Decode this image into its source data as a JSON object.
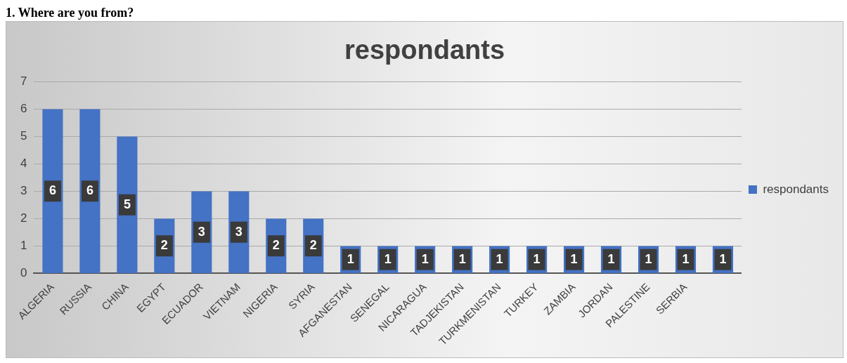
{
  "chart_data": {
    "type": "bar",
    "title": "respondants",
    "annotations": [
      "1. Where are you from?"
    ],
    "categories": [
      "ALGERIA",
      "RUSSIA",
      "CHINA",
      "EGYPT",
      "ECUADOR",
      "VIETNAM",
      "NIGERIA",
      "SYRIA",
      "AFGANESTAN",
      "SENEGAL",
      "NICARAGUA",
      "TADJEKISTAN",
      "TURKMENISTAN",
      "TURKEY",
      "ZAMBIA",
      "JORDAN",
      "PALESTINE",
      "SERBIA",
      null
    ],
    "series": [
      {
        "name": "respondants",
        "color": "#4472c4",
        "values": [
          6,
          6,
          5,
          2,
          3,
          3,
          2,
          2,
          1,
          1,
          1,
          1,
          1,
          1,
          1,
          1,
          1,
          1,
          1
        ]
      }
    ],
    "ylim": [
      0,
      7
    ],
    "yticks": [
      0,
      1,
      2,
      3,
      4,
      5,
      6,
      7
    ],
    "grid": "y",
    "legend": "right",
    "data_labels": true
  }
}
